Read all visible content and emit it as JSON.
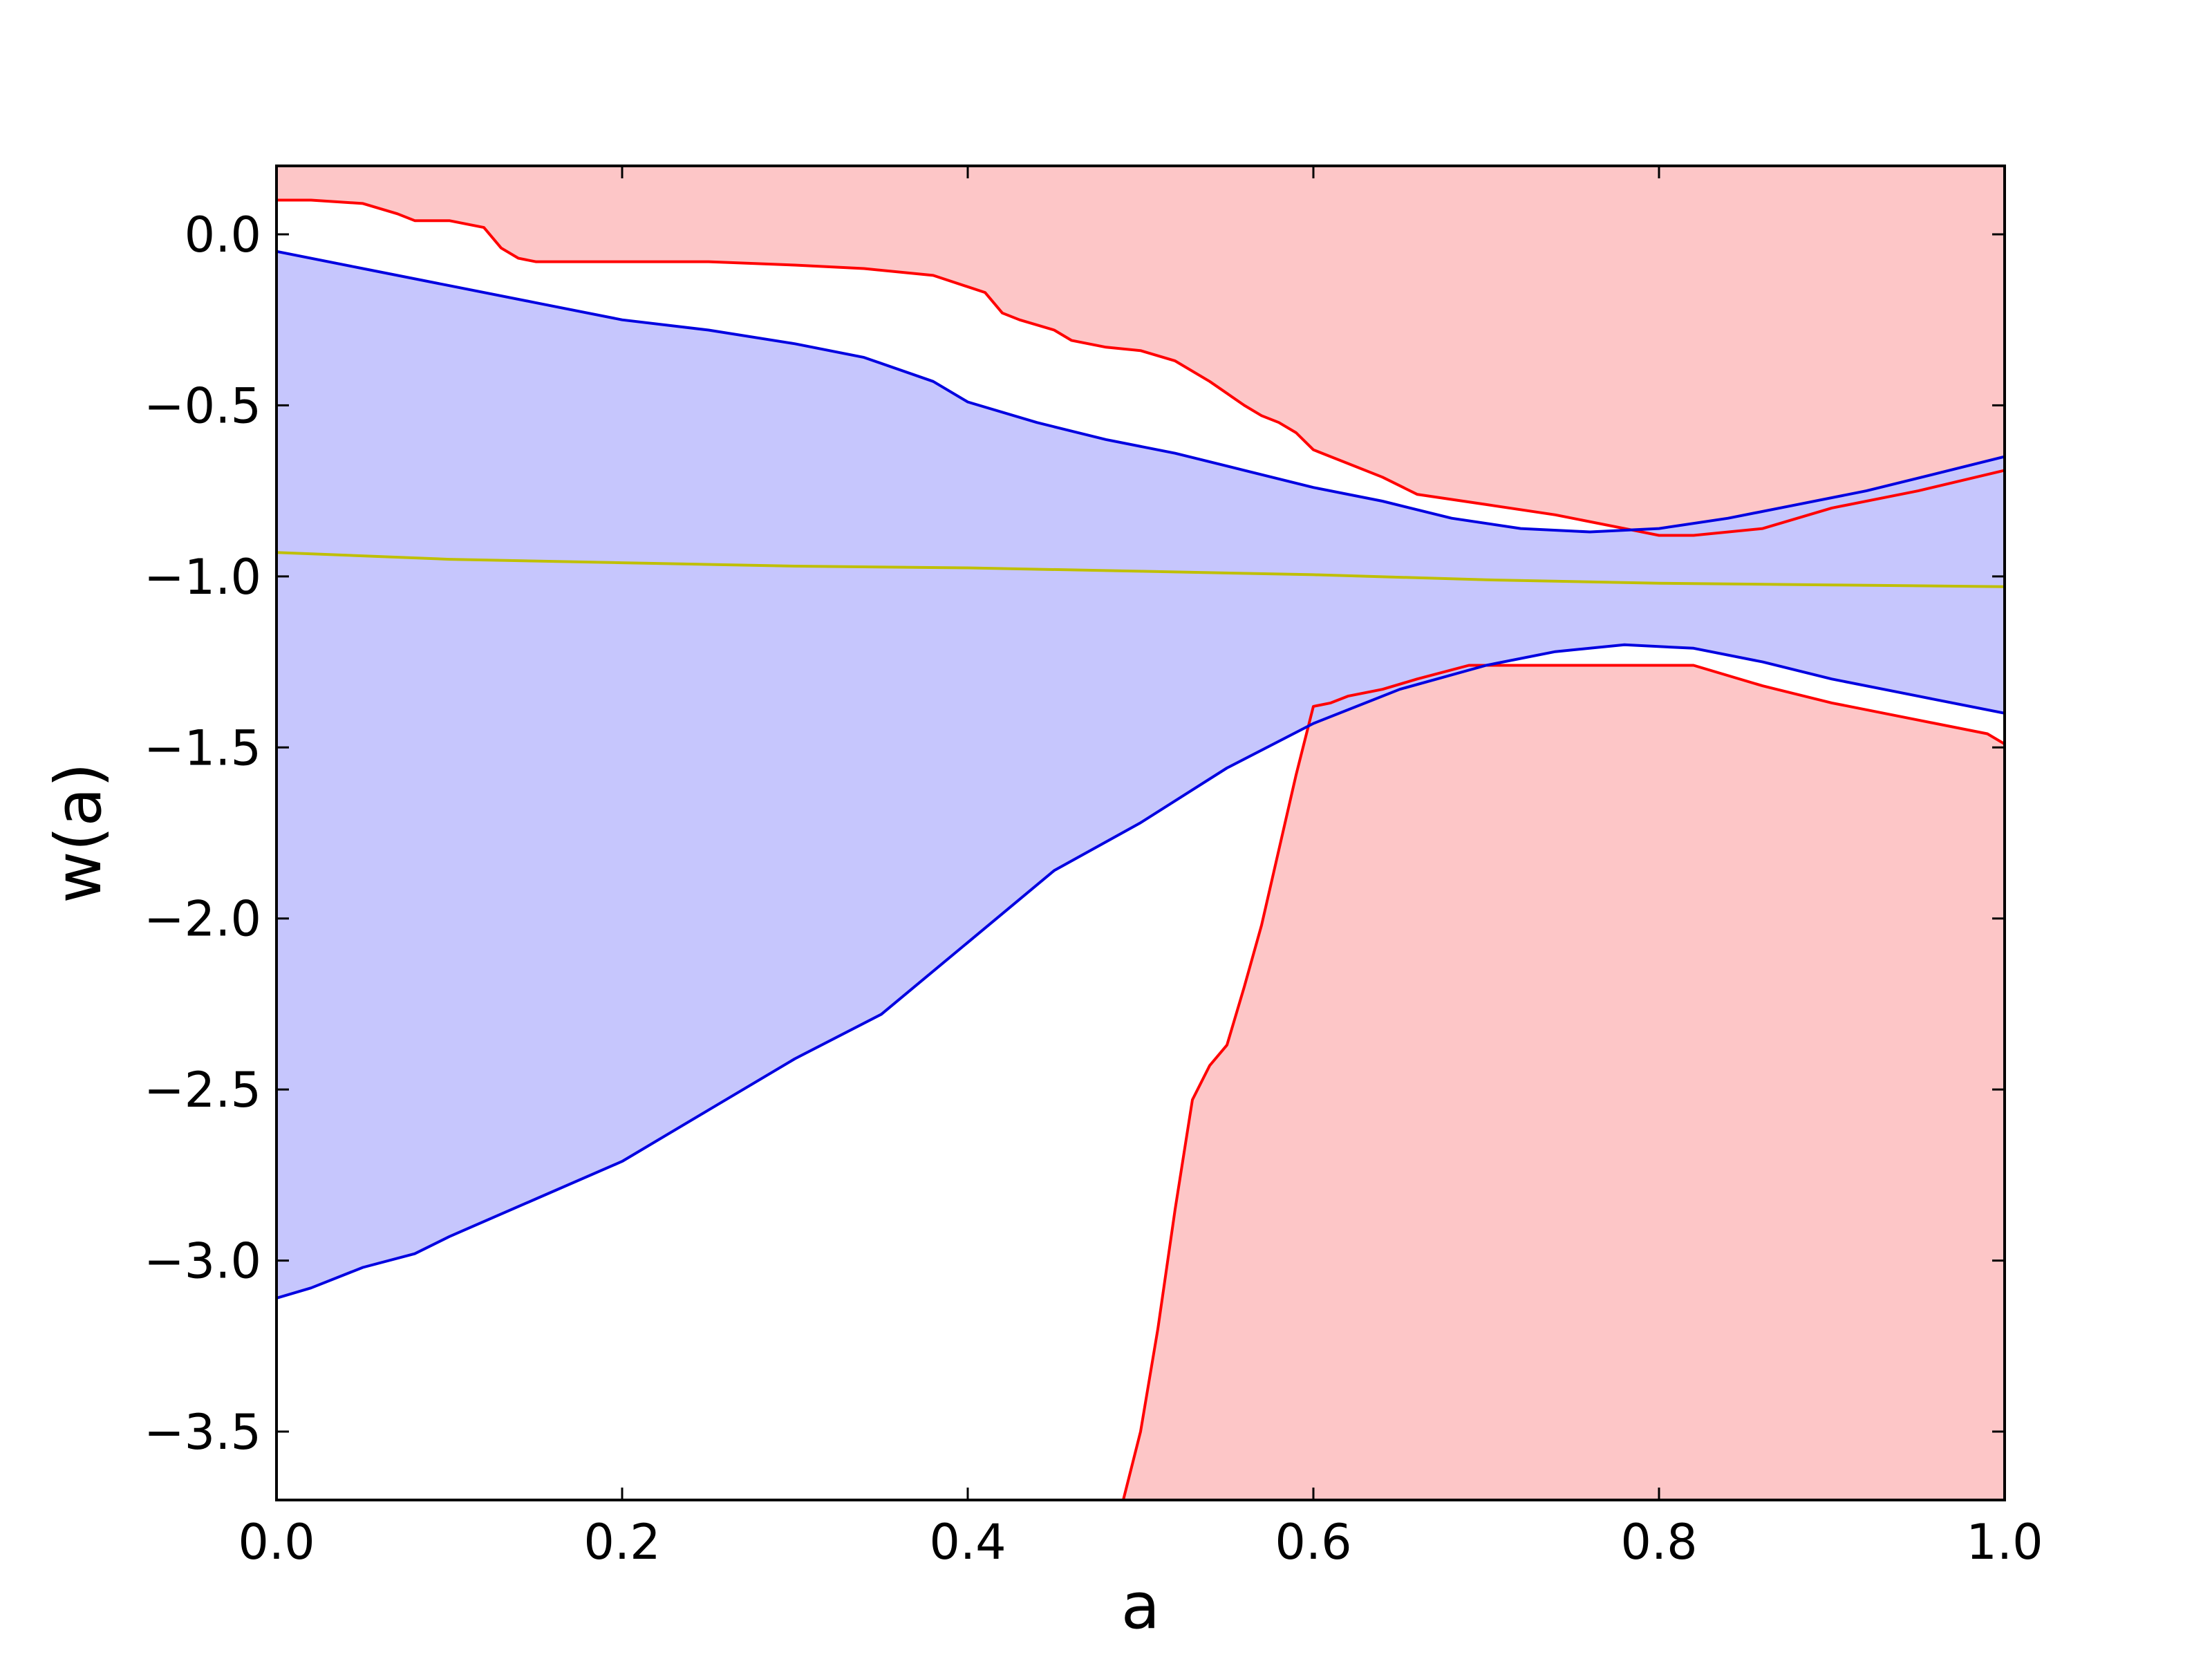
{
  "chart_data": {
    "type": "area",
    "xlabel": "a",
    "ylabel": "w(a)",
    "xlim": [
      0.0,
      1.0
    ],
    "ylim": [
      -3.7,
      0.2
    ],
    "grid": false,
    "xticks": [
      0.0,
      0.2,
      0.4,
      0.6,
      0.8,
      1.0
    ],
    "xtick_labels": [
      "0.0",
      "0.2",
      "0.4",
      "0.6",
      "0.8",
      "1.0"
    ],
    "yticks": [
      0.0,
      -0.5,
      -1.0,
      -1.5,
      -2.0,
      -2.5,
      -3.0,
      -3.5
    ],
    "ytick_labels": [
      "0.0",
      "−0.5",
      "−1.0",
      "−1.5",
      "−2.0",
      "−2.5",
      "−3.0",
      "−3.5"
    ],
    "colors": {
      "red_fill": "#fdc6c7",
      "red_line": "#ff0000",
      "blue_fill": "#c6c6fd",
      "blue_line": "#0000e0",
      "mean_line": "#bfbf00",
      "axes": "#000000"
    },
    "series": [
      {
        "role": "red-upper",
        "x": [
          0.0,
          0.02,
          0.05,
          0.07,
          0.08,
          0.1,
          0.12,
          0.13,
          0.14,
          0.15,
          0.2,
          0.25,
          0.3,
          0.34,
          0.38,
          0.41,
          0.42,
          0.43,
          0.45,
          0.46,
          0.48,
          0.5,
          0.52,
          0.54,
          0.56,
          0.57,
          0.58,
          0.59,
          0.6,
          0.61,
          0.62,
          0.64,
          0.66,
          0.7,
          0.74,
          0.78,
          0.8,
          0.82,
          0.86,
          0.9,
          0.95,
          1.0
        ],
        "y": [
          0.1,
          0.1,
          0.09,
          0.06,
          0.04,
          0.04,
          0.02,
          -0.04,
          -0.07,
          -0.08,
          -0.08,
          -0.08,
          -0.09,
          -0.1,
          -0.12,
          -0.17,
          -0.23,
          -0.25,
          -0.28,
          -0.31,
          -0.33,
          -0.34,
          -0.37,
          -0.43,
          -0.5,
          -0.53,
          -0.55,
          -0.58,
          -0.63,
          -0.65,
          -0.67,
          -0.71,
          -0.76,
          -0.79,
          -0.82,
          -0.86,
          -0.88,
          -0.88,
          -0.86,
          -0.8,
          -0.75,
          -0.69
        ]
      },
      {
        "role": "red-lower",
        "x": [
          0.49,
          0.5,
          0.51,
          0.52,
          0.53,
          0.54,
          0.55,
          0.56,
          0.57,
          0.58,
          0.59,
          0.6,
          0.61,
          0.62,
          0.64,
          0.66,
          0.69,
          0.72,
          0.76,
          0.8,
          0.82,
          0.86,
          0.9,
          0.95,
          0.99,
          1.0
        ],
        "y": [
          -3.7,
          -3.5,
          -3.2,
          -2.85,
          -2.53,
          -2.43,
          -2.37,
          -2.2,
          -2.02,
          -1.8,
          -1.58,
          -1.38,
          -1.37,
          -1.35,
          -1.33,
          -1.3,
          -1.26,
          -1.26,
          -1.26,
          -1.26,
          -1.26,
          -1.32,
          -1.37,
          -1.42,
          -1.46,
          -1.49
        ]
      },
      {
        "role": "blue-upper",
        "x": [
          0.0,
          0.05,
          0.1,
          0.15,
          0.2,
          0.25,
          0.3,
          0.34,
          0.38,
          0.4,
          0.44,
          0.48,
          0.52,
          0.56,
          0.6,
          0.64,
          0.68,
          0.72,
          0.76,
          0.8,
          0.84,
          0.88,
          0.92,
          0.96,
          1.0
        ],
        "y": [
          -0.05,
          -0.1,
          -0.15,
          -0.2,
          -0.25,
          -0.28,
          -0.32,
          -0.36,
          -0.43,
          -0.49,
          -0.55,
          -0.6,
          -0.64,
          -0.69,
          -0.74,
          -0.78,
          -0.83,
          -0.86,
          -0.87,
          -0.86,
          -0.83,
          -0.79,
          -0.75,
          -0.7,
          -0.65
        ]
      },
      {
        "role": "blue-lower",
        "x": [
          0.0,
          0.02,
          0.05,
          0.08,
          0.1,
          0.15,
          0.2,
          0.25,
          0.3,
          0.35,
          0.4,
          0.45,
          0.5,
          0.55,
          0.6,
          0.65,
          0.7,
          0.74,
          0.78,
          0.82,
          0.86,
          0.9,
          0.95,
          1.0
        ],
        "y": [
          -3.11,
          -3.08,
          -3.02,
          -2.98,
          -2.93,
          -2.82,
          -2.71,
          -2.56,
          -2.41,
          -2.28,
          -2.07,
          -1.86,
          -1.72,
          -1.56,
          -1.43,
          -1.33,
          -1.26,
          -1.22,
          -1.2,
          -1.21,
          -1.25,
          -1.3,
          -1.35,
          -1.4
        ]
      },
      {
        "role": "mean",
        "x": [
          0.0,
          0.1,
          0.2,
          0.3,
          0.4,
          0.5,
          0.6,
          0.7,
          0.8,
          0.9,
          1.0
        ],
        "y": [
          -0.93,
          -0.95,
          -0.96,
          -0.97,
          -0.975,
          -0.985,
          -0.995,
          -1.01,
          -1.02,
          -1.025,
          -1.03
        ]
      }
    ]
  }
}
